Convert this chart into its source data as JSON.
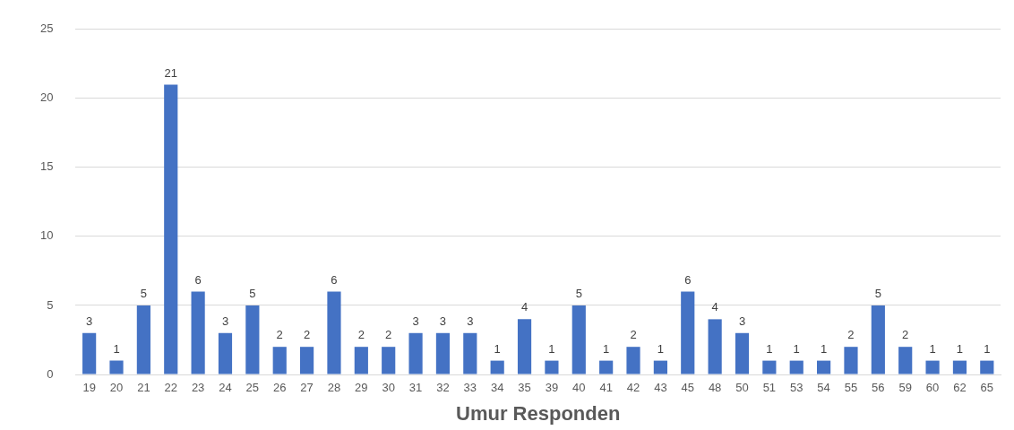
{
  "chart_data": {
    "type": "bar",
    "xlabel": "Umur Responden",
    "categories": [
      "19",
      "20",
      "21",
      "22",
      "23",
      "24",
      "25",
      "26",
      "27",
      "28",
      "29",
      "30",
      "31",
      "32",
      "33",
      "34",
      "35",
      "39",
      "40",
      "41",
      "42",
      "43",
      "45",
      "48",
      "50",
      "51",
      "53",
      "54",
      "55",
      "56",
      "59",
      "60",
      "62",
      "65"
    ],
    "values": [
      3,
      1,
      5,
      21,
      6,
      3,
      5,
      2,
      2,
      6,
      2,
      2,
      3,
      3,
      3,
      1,
      4,
      1,
      5,
      1,
      2,
      1,
      6,
      4,
      3,
      1,
      1,
      1,
      2,
      5,
      2,
      1,
      1,
      1
    ],
    "color": "#4472c4",
    "ylim": [
      0,
      25
    ],
    "yticks": [
      0,
      5,
      10,
      15,
      20,
      25
    ],
    "grid": "y",
    "data_labels": true,
    "legend": false
  }
}
